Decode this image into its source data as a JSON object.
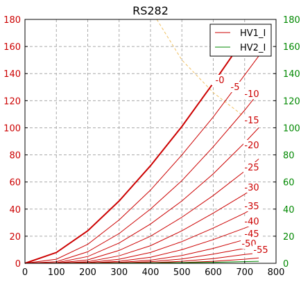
{
  "chart_data": {
    "type": "line",
    "title": "RS282",
    "xlabel": "",
    "ylabel": "",
    "xlim": [
      0,
      800
    ],
    "ylim": [
      0,
      180
    ],
    "y2lim": [
      0,
      180
    ],
    "x_ticks": [
      "0",
      "100",
      "200",
      "300",
      "400",
      "500",
      "600",
      "700",
      "800"
    ],
    "y_ticks": [
      "0",
      "20",
      "40",
      "60",
      "80",
      "100",
      "120",
      "140",
      "160",
      "180"
    ],
    "y2_ticks": [
      "0",
      "20",
      "40",
      "60",
      "80",
      "100",
      "120",
      "140",
      "160",
      "180"
    ],
    "grid": true,
    "legend_position": "top-right",
    "legend": [
      {
        "name": "HV1_I",
        "color": "#cc0000"
      },
      {
        "name": "HV2_I",
        "color": "#008800"
      }
    ],
    "colors": {
      "hv1": "#cc0000",
      "hv2": "#008800",
      "y2_ticks": "#008800",
      "y_ticks": "#cc0000",
      "power_limit": "#f0c060"
    },
    "series": [
      {
        "label": "-0",
        "x": [
          0,
          100,
          200,
          300,
          400,
          500,
          600,
          690
        ],
        "y": [
          0,
          8,
          24,
          46,
          72,
          101,
          133,
          163
        ]
      },
      {
        "label": "-5",
        "x": [
          0,
          100,
          200,
          300,
          400,
          500,
          600,
          700,
          745
        ],
        "y": [
          0,
          3,
          14,
          32,
          54,
          80,
          108,
          139,
          153
        ]
      },
      {
        "label": "-10",
        "x": [
          0,
          100,
          200,
          300,
          400,
          500,
          600,
          700,
          745
        ],
        "y": [
          0,
          1.2,
          8.5,
          22,
          40,
          61,
          86,
          113,
          126
        ]
      },
      {
        "label": "-15",
        "x": [
          0,
          100,
          200,
          300,
          400,
          500,
          600,
          700,
          745
        ],
        "y": [
          0,
          0.4,
          5,
          15,
          29,
          46,
          66,
          89,
          100
        ]
      },
      {
        "label": "-20",
        "x": [
          0,
          100,
          200,
          300,
          400,
          500,
          600,
          700,
          745
        ],
        "y": [
          0,
          0.1,
          2.5,
          9.5,
          20,
          34,
          50,
          68,
          77
        ]
      },
      {
        "label": "-25",
        "x": [
          0,
          100,
          200,
          300,
          400,
          500,
          600,
          700,
          745
        ],
        "y": [
          0,
          0,
          1.2,
          5.5,
          13,
          24,
          37,
          51,
          58
        ]
      },
      {
        "label": "-30",
        "x": [
          0,
          200,
          300,
          400,
          500,
          600,
          700,
          745
        ],
        "y": [
          0,
          0.5,
          3,
          8,
          16,
          26,
          37,
          43
        ]
      },
      {
        "label": "-35",
        "x": [
          0,
          200,
          300,
          400,
          500,
          600,
          700,
          745
        ],
        "y": [
          0,
          0.1,
          1.5,
          4.5,
          10,
          17.5,
          26,
          30
        ]
      },
      {
        "label": "-40",
        "x": [
          0,
          300,
          400,
          500,
          600,
          700,
          745
        ],
        "y": [
          0,
          0.6,
          2.3,
          5.8,
          11,
          17.5,
          20
        ]
      },
      {
        "label": "-45",
        "x": [
          0,
          300,
          400,
          500,
          600,
          700,
          745
        ],
        "y": [
          0,
          0.2,
          1.1,
          3.2,
          6.8,
          11,
          13
        ]
      },
      {
        "label": "-50",
        "x": [
          0,
          400,
          500,
          600,
          700,
          745
        ],
        "y": [
          0,
          0.4,
          1.5,
          3.5,
          6.5,
          7.5
        ]
      },
      {
        "label": "-55",
        "x": [
          0,
          500,
          600,
          700,
          745
        ],
        "y": [
          0,
          0.5,
          1.5,
          3,
          4
        ]
      }
    ],
    "hv2_series": {
      "name": "HV2_I",
      "x": [
        0,
        200,
        400,
        600,
        745
      ],
      "y": [
        0,
        0.1,
        0.3,
        0.7,
        1.5
      ]
    },
    "power_limit": {
      "x": [
        420,
        500,
        600,
        700,
        745
      ],
      "y": [
        180,
        150,
        126,
        108,
        101
      ]
    },
    "curve_labels": [
      "-0",
      "-5",
      "-10",
      "-15",
      "-20",
      "-25",
      "-30",
      "-35",
      "-40",
      "-45",
      "-50",
      "-55"
    ]
  }
}
